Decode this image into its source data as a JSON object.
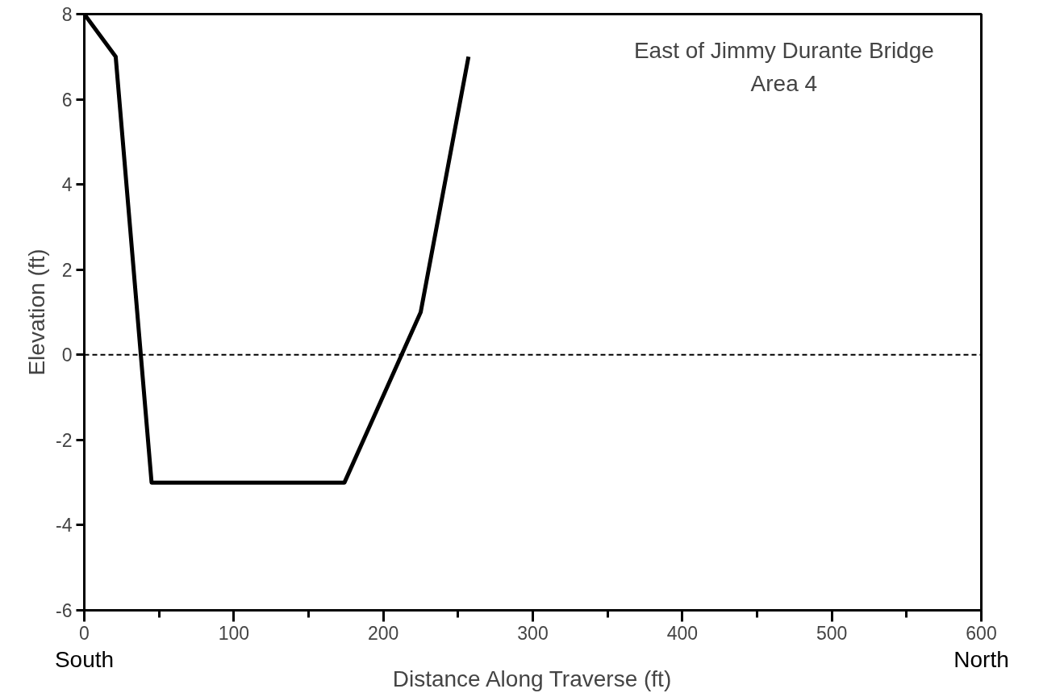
{
  "chart_data": {
    "type": "line",
    "title": "East of Jimmy Durante Bridge",
    "subtitle": "Area 4",
    "xlabel": "Distance Along Traverse (ft)",
    "ylabel": "Elevation (ft)",
    "x": [
      0,
      21,
      45,
      174,
      225,
      257
    ],
    "series": [
      {
        "color": "#000000",
        "values": [
          8,
          7,
          -3,
          -3,
          1,
          7
        ]
      }
    ],
    "xlim": [
      0,
      600
    ],
    "ylim": [
      -6,
      8
    ],
    "xticks": [
      0,
      {
        "value": 50,
        "label": null
      },
      100,
      {
        "value": 150,
        "label": null
      },
      200,
      {
        "value": 250,
        "label": null
      },
      300,
      {
        "value": 350,
        "label": null
      },
      400,
      {
        "value": 450,
        "label": null
      },
      500,
      {
        "value": 550,
        "label": null
      },
      600
    ],
    "yticks": [
      -6,
      -4,
      -2,
      0,
      2,
      4,
      6,
      8
    ],
    "ref_lines": [
      {
        "axis": "y",
        "value": 0,
        "label": null,
        "color": "#000000",
        "line_style": "dashed"
      }
    ],
    "annotations": [
      "South",
      "North"
    ],
    "grid": false,
    "marker": "none",
    "line_style": "solid"
  }
}
